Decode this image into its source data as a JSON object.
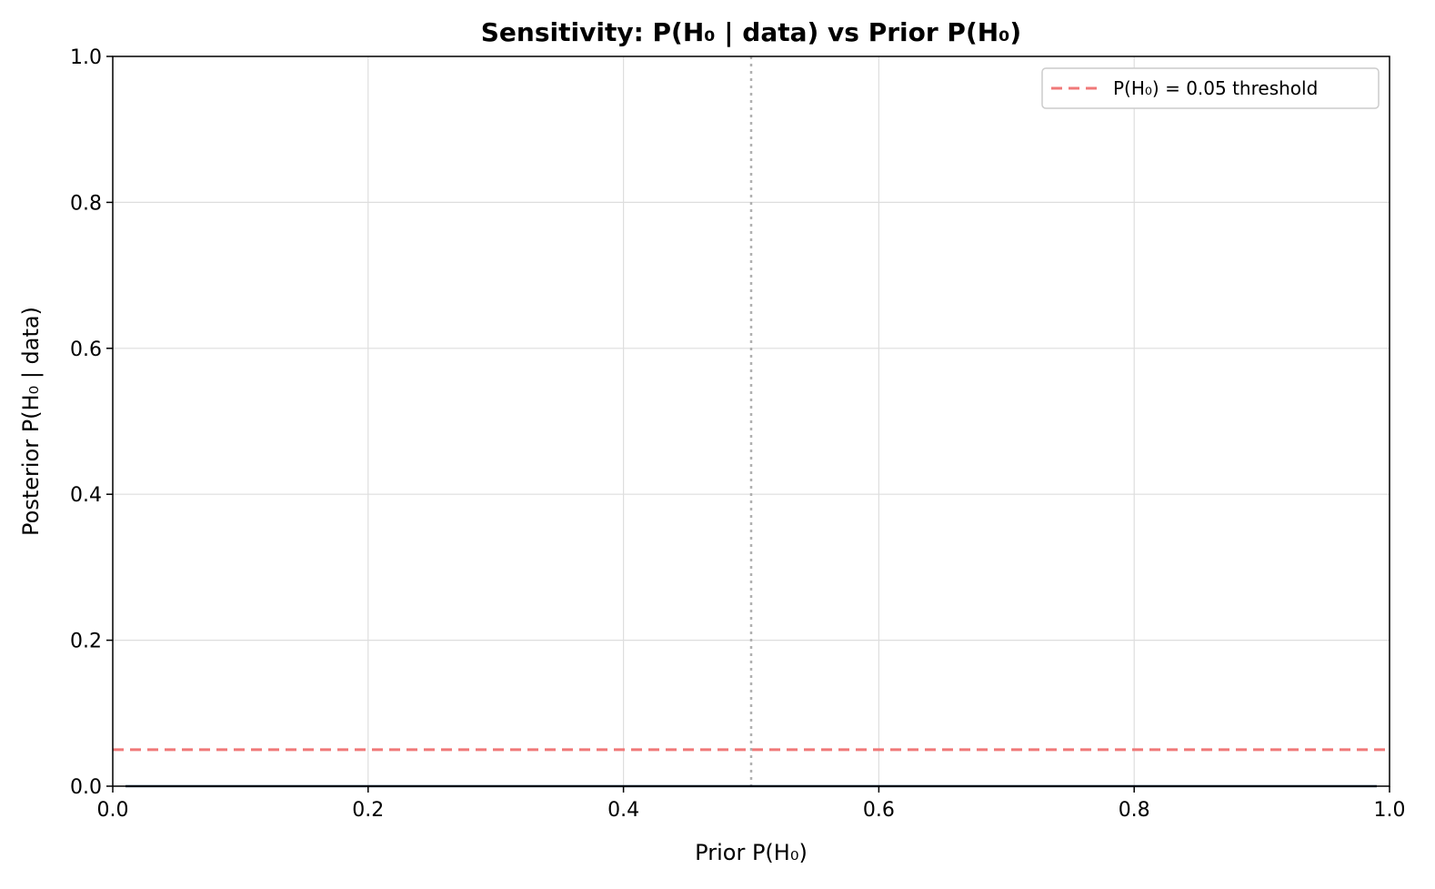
{
  "chart_data": {
    "type": "line",
    "title": "Sensitivity: P(H₀ | data) vs Prior P(H₀)",
    "xlabel": "Prior P(H₀)",
    "ylabel": "Posterior P(H₀ | data)",
    "xlim": [
      0.0,
      1.0
    ],
    "ylim": [
      0.0,
      1.0
    ],
    "xticks": [
      "0.0",
      "0.2",
      "0.4",
      "0.6",
      "0.8",
      "1.0"
    ],
    "yticks": [
      "0.0",
      "0.2",
      "0.4",
      "0.6",
      "0.8",
      "1.0"
    ],
    "grid": true,
    "legend_position": "top-right",
    "series": [
      {
        "x": [
          0.01,
          0.1,
          0.2,
          0.3,
          0.4,
          0.5,
          0.6,
          0.7,
          0.8,
          0.9,
          0.99
        ],
        "y": [
          0.0,
          0.0,
          0.0,
          0.0,
          0.0,
          0.0,
          0.0,
          0.0,
          0.0,
          0.0,
          0.0
        ],
        "color": "#1f3b57",
        "style": "solid"
      }
    ],
    "reference_lines": [
      {
        "orientation": "horizontal",
        "value": 0.05,
        "name": "P(H₀) = 0.05 threshold",
        "color": "#f07878",
        "style": "dashed",
        "in_legend": true
      },
      {
        "orientation": "vertical",
        "value": 0.5,
        "color": "#b0b0b0",
        "style": "dotted",
        "in_legend": false
      }
    ]
  }
}
